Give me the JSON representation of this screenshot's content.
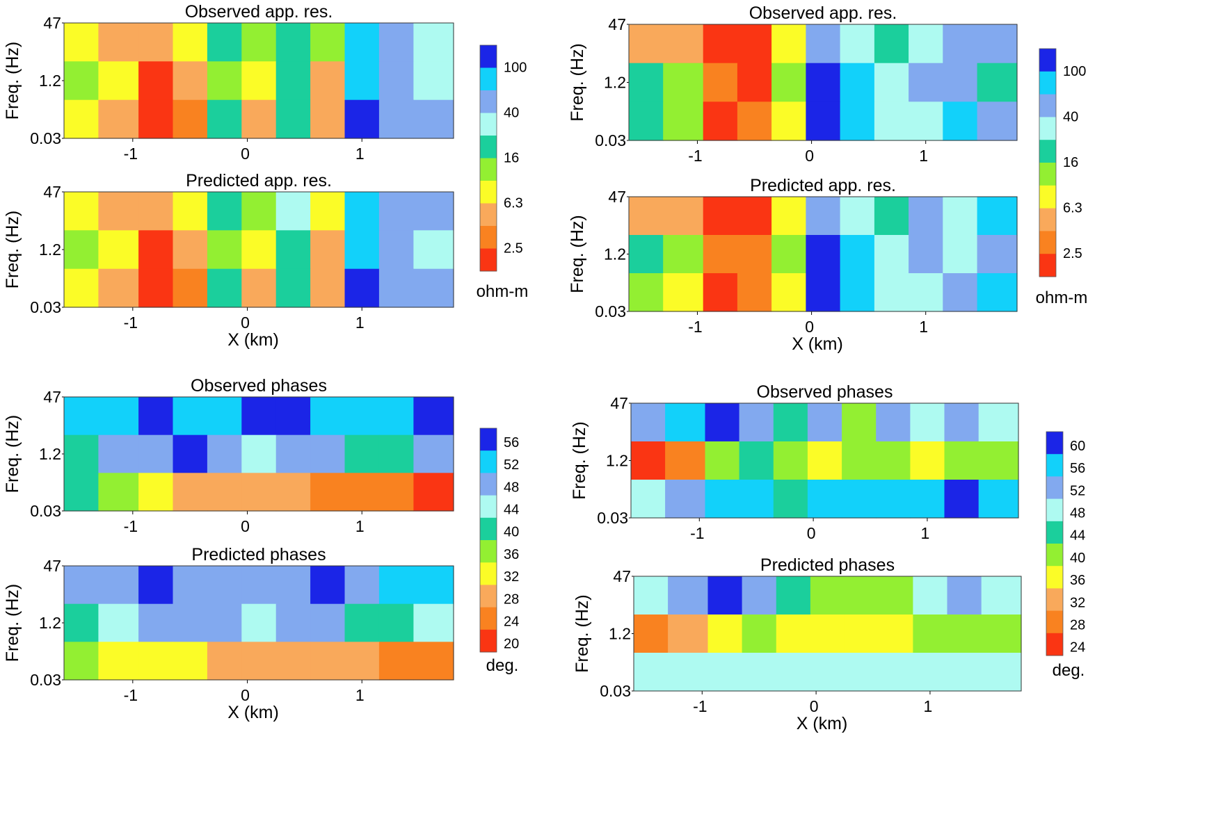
{
  "figure": {
    "colors": {
      "red": "#fa3513",
      "dark_orange": "#f98220",
      "light_orange": "#f9a95b",
      "yellow": "#fbfc27",
      "light_green": "#93ef32",
      "teal_green": "#1bcf9c",
      "pale_cyan": "#aefaf1",
      "periwinkle": "#82a9ef",
      "cyan": "#12d1fa",
      "blue": "#1b25e7"
    },
    "x_label": "X (km)",
    "y_label": "Freq. (Hz)",
    "x_ticks": [
      "-1",
      "0",
      "1"
    ],
    "y_ticks": [
      "47",
      "1.2",
      "0.03"
    ]
  },
  "chart_data": [
    {
      "id": "left-res-observed",
      "type": "heatmap",
      "title": "Observed app. res.",
      "xlabel": "",
      "ylabel": "Freq. (Hz)",
      "x_ticks": [
        -1,
        0,
        1
      ],
      "y_ticks": [
        "47",
        "1.2",
        "0.03"
      ],
      "xlim": [
        -1.6,
        1.8
      ],
      "colorbar_levels": [
        "2.5",
        "6.3",
        "16",
        "40",
        "100"
      ],
      "colorbar_unit": "ohm-m",
      "x": [
        -1.5,
        -1.1,
        -0.8,
        -0.5,
        -0.2,
        0.1,
        0.4,
        0.7,
        1.0,
        1.3,
        1.6
      ],
      "rows": [
        "47",
        "1.2",
        "0.03"
      ],
      "z": [
        [
          "yellow",
          "light_orange",
          "light_orange",
          "yellow",
          "teal_green",
          "light_green",
          "teal_green",
          "light_green",
          "cyan",
          "periwinkle",
          "pale_cyan"
        ],
        [
          "light_green",
          "yellow",
          "red",
          "light_orange",
          "light_green",
          "yellow",
          "teal_green",
          "light_orange",
          "cyan",
          "periwinkle",
          "pale_cyan"
        ],
        [
          "yellow",
          "light_orange",
          "red",
          "dark_orange",
          "teal_green",
          "light_orange",
          "teal_green",
          "light_orange",
          "blue",
          "periwinkle",
          "periwinkle"
        ]
      ]
    },
    {
      "id": "left-res-predicted",
      "type": "heatmap",
      "title": "Predicted app. res.",
      "xlabel": "X (km)",
      "ylabel": "Freq. (Hz)",
      "x_ticks": [
        -1,
        0,
        1
      ],
      "y_ticks": [
        "47",
        "1.2",
        "0.03"
      ],
      "xlim": [
        -1.6,
        1.8
      ],
      "colorbar_levels": [
        "2.5",
        "6.3",
        "16",
        "40",
        "100"
      ],
      "colorbar_unit": "ohm-m",
      "x": [
        -1.5,
        -1.1,
        -0.8,
        -0.5,
        -0.2,
        0.1,
        0.4,
        0.7,
        1.0,
        1.3,
        1.6
      ],
      "rows": [
        "47",
        "1.2",
        "0.03"
      ],
      "z": [
        [
          "yellow",
          "light_orange",
          "light_orange",
          "yellow",
          "teal_green",
          "light_green",
          "pale_cyan",
          "yellow",
          "cyan",
          "periwinkle",
          "periwinkle"
        ],
        [
          "light_green",
          "yellow",
          "red",
          "light_orange",
          "light_green",
          "yellow",
          "teal_green",
          "light_orange",
          "cyan",
          "periwinkle",
          "pale_cyan"
        ],
        [
          "yellow",
          "light_orange",
          "red",
          "dark_orange",
          "teal_green",
          "light_orange",
          "teal_green",
          "light_orange",
          "blue",
          "periwinkle",
          "periwinkle"
        ]
      ]
    },
    {
      "id": "left-phase-observed",
      "type": "heatmap",
      "title": "Observed phases",
      "xlabel": "",
      "ylabel": "Freq. (Hz)",
      "x_ticks": [
        -1,
        0,
        1
      ],
      "y_ticks": [
        "47",
        "1.2",
        "0.03"
      ],
      "xlim": [
        -1.6,
        1.8
      ],
      "colorbar_levels": [
        "20",
        "24",
        "28",
        "32",
        "36",
        "40",
        "44",
        "48",
        "52",
        "56"
      ],
      "colorbar_unit": "deg.",
      "x": [
        -1.5,
        -1.1,
        -0.8,
        -0.5,
        -0.2,
        0.1,
        0.4,
        0.7,
        1.0,
        1.3,
        1.6
      ],
      "rows": [
        "47",
        "1.2",
        "0.03"
      ],
      "z": [
        [
          "cyan",
          "cyan",
          "blue",
          "cyan",
          "cyan",
          "blue",
          "blue",
          "cyan",
          "cyan",
          "cyan",
          "blue"
        ],
        [
          "teal_green",
          "periwinkle",
          "periwinkle",
          "blue",
          "periwinkle",
          "pale_cyan",
          "periwinkle",
          "periwinkle",
          "teal_green",
          "teal_green",
          "periwinkle"
        ],
        [
          "teal_green",
          "light_green",
          "yellow",
          "light_orange",
          "light_orange",
          "light_orange",
          "light_orange",
          "dark_orange",
          "dark_orange",
          "dark_orange",
          "red"
        ]
      ]
    },
    {
      "id": "left-phase-predicted",
      "type": "heatmap",
      "title": "Predicted phases",
      "xlabel": "X (km)",
      "ylabel": "Freq. (Hz)",
      "x_ticks": [
        -1,
        0,
        1
      ],
      "y_ticks": [
        "47",
        "1.2",
        "0.03"
      ],
      "xlim": [
        -1.6,
        1.8
      ],
      "colorbar_levels": [
        "20",
        "24",
        "28",
        "32",
        "36",
        "40",
        "44",
        "48",
        "52",
        "56"
      ],
      "colorbar_unit": "deg.",
      "x": [
        -1.5,
        -1.1,
        -0.8,
        -0.5,
        -0.2,
        0.1,
        0.4,
        0.7,
        1.0,
        1.3,
        1.6
      ],
      "rows": [
        "47",
        "1.2",
        "0.03"
      ],
      "z": [
        [
          "periwinkle",
          "periwinkle",
          "blue",
          "periwinkle",
          "periwinkle",
          "periwinkle",
          "periwinkle",
          "blue",
          "periwinkle",
          "cyan",
          "cyan"
        ],
        [
          "teal_green",
          "pale_cyan",
          "periwinkle",
          "periwinkle",
          "periwinkle",
          "pale_cyan",
          "periwinkle",
          "periwinkle",
          "teal_green",
          "teal_green",
          "pale_cyan"
        ],
        [
          "light_green",
          "yellow",
          "yellow",
          "yellow",
          "light_orange",
          "light_orange",
          "light_orange",
          "light_orange",
          "light_orange",
          "dark_orange",
          "dark_orange"
        ]
      ]
    },
    {
      "id": "right-res-observed",
      "type": "heatmap",
      "title": "Observed app. res.",
      "xlabel": "",
      "ylabel": "Freq. (Hz)",
      "x_ticks": [
        -1,
        0,
        1
      ],
      "y_ticks": [
        "47",
        "1.2",
        "0.03"
      ],
      "xlim": [
        -1.6,
        1.8
      ],
      "colorbar_levels": [
        "2.5",
        "6.3",
        "16",
        "40",
        "100"
      ],
      "colorbar_unit": "ohm-m",
      "x": [
        -1.5,
        -1.1,
        -0.8,
        -0.5,
        -0.2,
        0.1,
        0.4,
        0.7,
        1.0,
        1.3,
        1.6
      ],
      "rows": [
        "47",
        "1.2",
        "0.03"
      ],
      "z": [
        [
          "light_orange",
          "light_orange",
          "red",
          "red",
          "yellow",
          "periwinkle",
          "pale_cyan",
          "teal_green",
          "pale_cyan",
          "periwinkle",
          "periwinkle"
        ],
        [
          "teal_green",
          "light_green",
          "dark_orange",
          "red",
          "light_green",
          "blue",
          "cyan",
          "pale_cyan",
          "periwinkle",
          "periwinkle",
          "teal_green"
        ],
        [
          "teal_green",
          "light_green",
          "red",
          "dark_orange",
          "yellow",
          "blue",
          "cyan",
          "pale_cyan",
          "pale_cyan",
          "cyan",
          "periwinkle"
        ]
      ]
    },
    {
      "id": "right-res-predicted",
      "type": "heatmap",
      "title": "Predicted app. res.",
      "xlabel": "X (km)",
      "ylabel": "Freq. (Hz)",
      "x_ticks": [
        -1,
        0,
        1
      ],
      "y_ticks": [
        "47",
        "1.2",
        "0.03"
      ],
      "xlim": [
        -1.6,
        1.8
      ],
      "colorbar_levels": [
        "2.5",
        "6.3",
        "16",
        "40",
        "100"
      ],
      "colorbar_unit": "ohm-m",
      "x": [
        -1.5,
        -1.1,
        -0.8,
        -0.5,
        -0.2,
        0.1,
        0.4,
        0.7,
        1.0,
        1.3,
        1.6
      ],
      "rows": [
        "47",
        "1.2",
        "0.03"
      ],
      "z": [
        [
          "light_orange",
          "light_orange",
          "red",
          "red",
          "yellow",
          "periwinkle",
          "pale_cyan",
          "teal_green",
          "periwinkle",
          "pale_cyan",
          "cyan"
        ],
        [
          "teal_green",
          "light_green",
          "dark_orange",
          "dark_orange",
          "light_green",
          "blue",
          "cyan",
          "pale_cyan",
          "periwinkle",
          "pale_cyan",
          "periwinkle"
        ],
        [
          "light_green",
          "yellow",
          "red",
          "dark_orange",
          "yellow",
          "blue",
          "cyan",
          "pale_cyan",
          "pale_cyan",
          "periwinkle",
          "cyan"
        ]
      ]
    },
    {
      "id": "right-phase-observed",
      "type": "heatmap",
      "title": "Observed phases",
      "xlabel": "",
      "ylabel": "Freq. (Hz)",
      "x_ticks": [
        -1,
        0,
        1
      ],
      "y_ticks": [
        "47",
        "1.2",
        "0.03"
      ],
      "xlim": [
        -1.6,
        1.8
      ],
      "colorbar_levels": [
        "24",
        "28",
        "32",
        "36",
        "40",
        "44",
        "48",
        "52",
        "56",
        "60"
      ],
      "colorbar_unit": "deg.",
      "x": [
        -1.5,
        -1.1,
        -0.8,
        -0.5,
        -0.2,
        0.1,
        0.4,
        0.7,
        1.0,
        1.3,
        1.6
      ],
      "rows": [
        "47",
        "1.2",
        "0.03"
      ],
      "z": [
        [
          "periwinkle",
          "cyan",
          "blue",
          "periwinkle",
          "teal_green",
          "periwinkle",
          "light_green",
          "periwinkle",
          "pale_cyan",
          "periwinkle",
          "pale_cyan"
        ],
        [
          "red",
          "dark_orange",
          "light_green",
          "teal_green",
          "light_green",
          "yellow",
          "light_green",
          "light_green",
          "yellow",
          "light_green",
          "light_green"
        ],
        [
          "pale_cyan",
          "periwinkle",
          "cyan",
          "cyan",
          "teal_green",
          "cyan",
          "cyan",
          "cyan",
          "cyan",
          "blue",
          "cyan"
        ]
      ]
    },
    {
      "id": "right-phase-predicted",
      "type": "heatmap",
      "title": "Predicted phases",
      "xlabel": "X (km)",
      "ylabel": "Freq. (Hz)",
      "x_ticks": [
        -1,
        0,
        1
      ],
      "y_ticks": [
        "47",
        "1.2",
        "0.03"
      ],
      "xlim": [
        -1.6,
        1.8
      ],
      "colorbar_levels": [
        "24",
        "28",
        "32",
        "36",
        "40",
        "44",
        "48",
        "52",
        "56",
        "60"
      ],
      "colorbar_unit": "deg.",
      "x": [
        -1.5,
        -1.1,
        -0.8,
        -0.5,
        -0.2,
        0.1,
        0.4,
        0.7,
        1.0,
        1.3,
        1.6
      ],
      "rows": [
        "47",
        "1.2",
        "0.03"
      ],
      "z": [
        [
          "pale_cyan",
          "periwinkle",
          "blue",
          "periwinkle",
          "teal_green",
          "light_green",
          "light_green",
          "light_green",
          "pale_cyan",
          "periwinkle",
          "pale_cyan"
        ],
        [
          "dark_orange",
          "light_orange",
          "yellow",
          "light_green",
          "yellow",
          "yellow",
          "yellow",
          "yellow",
          "light_green",
          "light_green",
          "light_green"
        ],
        [
          "pale_cyan",
          "pale_cyan",
          "pale_cyan",
          "pale_cyan",
          "pale_cyan",
          "pale_cyan",
          "pale_cyan",
          "pale_cyan",
          "pale_cyan",
          "pale_cyan",
          "pale_cyan"
        ]
      ]
    }
  ],
  "colorbars": [
    {
      "id": "cb-left-res",
      "labels": [
        "100",
        "40",
        "16",
        "6.3",
        "2.5"
      ],
      "unit": "ohm-m",
      "swatches": [
        "blue",
        "cyan",
        "periwinkle",
        "pale_cyan",
        "teal_green",
        "light_green",
        "yellow",
        "light_orange",
        "dark_orange",
        "red"
      ]
    },
    {
      "id": "cb-right-res",
      "labels": [
        "100",
        "40",
        "16",
        "6.3",
        "2.5"
      ],
      "unit": "ohm-m",
      "swatches": [
        "blue",
        "cyan",
        "periwinkle",
        "pale_cyan",
        "teal_green",
        "light_green",
        "yellow",
        "light_orange",
        "dark_orange",
        "red"
      ]
    },
    {
      "id": "cb-left-phase",
      "labels": [
        "56",
        "52",
        "48",
        "44",
        "40",
        "36",
        "32",
        "28",
        "24",
        "20"
      ],
      "unit": "deg.",
      "swatches": [
        "blue",
        "cyan",
        "periwinkle",
        "pale_cyan",
        "teal_green",
        "light_green",
        "yellow",
        "light_orange",
        "dark_orange",
        "red"
      ]
    },
    {
      "id": "cb-right-phase",
      "labels": [
        "60",
        "56",
        "52",
        "48",
        "44",
        "40",
        "36",
        "32",
        "28",
        "24"
      ],
      "unit": "deg.",
      "swatches": [
        "blue",
        "cyan",
        "periwinkle",
        "pale_cyan",
        "teal_green",
        "light_green",
        "yellow",
        "light_orange",
        "dark_orange",
        "red"
      ]
    }
  ]
}
